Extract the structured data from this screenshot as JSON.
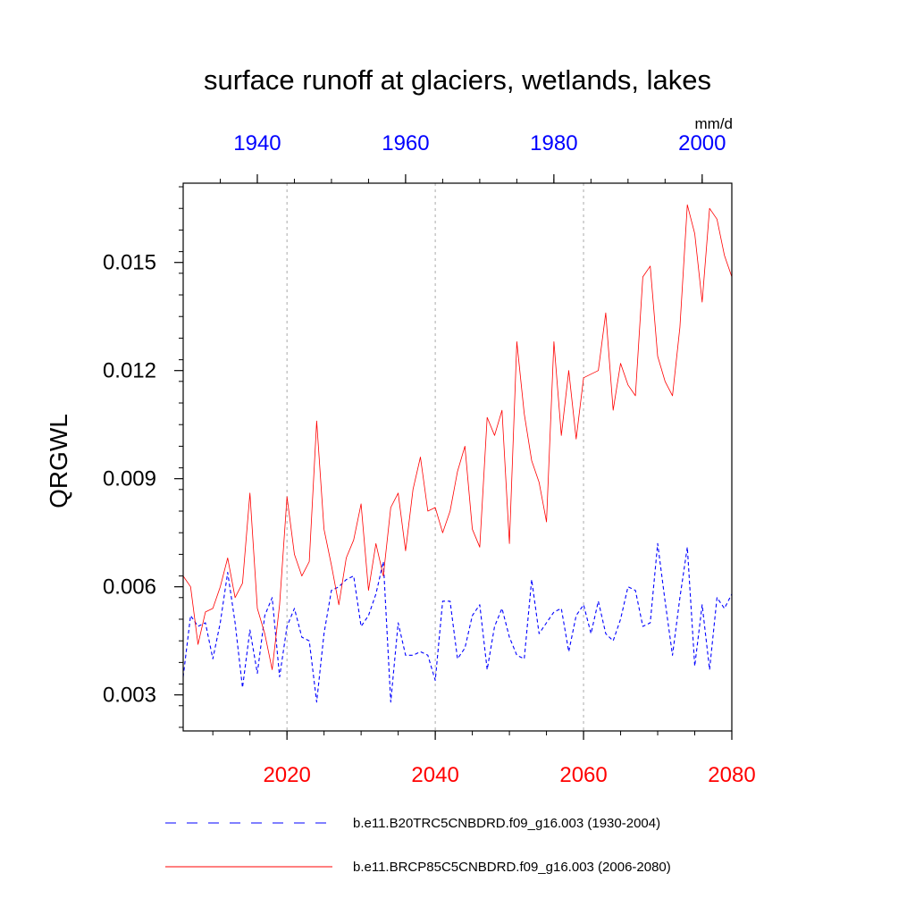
{
  "chart_data": {
    "type": "line",
    "title": "surface runoff at glaciers, wetlands, lakes",
    "ylabel": "QRGWL",
    "units": "mm/d",
    "ylim": [
      0.002,
      0.0172
    ],
    "yticks": [
      {
        "value": 0.003,
        "label": "0.003"
      },
      {
        "value": 0.006,
        "label": "0.006"
      },
      {
        "value": 0.009,
        "label": "0.009"
      },
      {
        "value": 0.012,
        "label": "0.012"
      },
      {
        "value": 0.015,
        "label": "0.015"
      }
    ],
    "bottom_axis": {
      "range": [
        2006,
        2080
      ],
      "ticks": [
        "2020",
        "2040",
        "2060",
        "2080"
      ],
      "color": "#ff0000"
    },
    "top_axis": {
      "range": [
        1930,
        2004
      ],
      "ticks": [
        "1940",
        "1960",
        "1980",
        "2000"
      ],
      "color": "#0000ff"
    },
    "grid": "dotted vertical at 2020, 2040, 2060",
    "series": [
      {
        "name": "b.e11.B20TRC5CNBDRD.f09_g16.003 (1930-2004)",
        "color": "#0000ff",
        "style": "dashed",
        "x_start": 1930,
        "values": [
          0.0035,
          0.0052,
          0.0049,
          0.005,
          0.004,
          0.005,
          0.0064,
          0.005,
          0.0032,
          0.0048,
          0.0036,
          0.0052,
          0.0057,
          0.0035,
          0.0049,
          0.0054,
          0.0046,
          0.0045,
          0.0028,
          0.0047,
          0.0059,
          0.006,
          0.0062,
          0.0063,
          0.0049,
          0.0052,
          0.0058,
          0.0067,
          0.0028,
          0.005,
          0.0041,
          0.0041,
          0.0042,
          0.0041,
          0.0034,
          0.0056,
          0.0056,
          0.004,
          0.0043,
          0.0052,
          0.0055,
          0.0037,
          0.0049,
          0.0054,
          0.0046,
          0.0041,
          0.004,
          0.0062,
          0.0047,
          0.005,
          0.0053,
          0.0054,
          0.0042,
          0.0052,
          0.0055,
          0.0047,
          0.0056,
          0.0047,
          0.0045,
          0.0051,
          0.006,
          0.0059,
          0.0049,
          0.005,
          0.0072,
          0.0056,
          0.0041,
          0.0057,
          0.0071,
          0.0038,
          0.0055,
          0.0037,
          0.0057,
          0.0054,
          0.0058
        ]
      },
      {
        "name": "b.e11.BRCP85C5CNBDRD.f09_g16.003 (2006-2080)",
        "color": "#ff0000",
        "style": "solid",
        "x_start": 2006,
        "values": [
          0.0063,
          0.006,
          0.0044,
          0.0053,
          0.0054,
          0.006,
          0.0068,
          0.0057,
          0.0061,
          0.0086,
          0.0054,
          0.0047,
          0.0037,
          0.0055,
          0.0085,
          0.0069,
          0.0063,
          0.0067,
          0.0106,
          0.0076,
          0.0066,
          0.0055,
          0.0068,
          0.0073,
          0.0083,
          0.0059,
          0.0072,
          0.0063,
          0.0082,
          0.0086,
          0.007,
          0.0087,
          0.0096,
          0.0081,
          0.0082,
          0.0075,
          0.0081,
          0.0092,
          0.0099,
          0.0076,
          0.0071,
          0.0107,
          0.0102,
          0.0109,
          0.0072,
          0.0128,
          0.0108,
          0.0095,
          0.0089,
          0.0078,
          0.0128,
          0.0102,
          0.012,
          0.0101,
          0.0118,
          0.0119,
          0.012,
          0.0136,
          0.0109,
          0.0122,
          0.0116,
          0.0113,
          0.0146,
          0.0149,
          0.0124,
          0.0117,
          0.0113,
          0.0132,
          0.0166,
          0.0158,
          0.0139,
          0.0165,
          0.0162,
          0.0152,
          0.0146
        ]
      }
    ]
  }
}
